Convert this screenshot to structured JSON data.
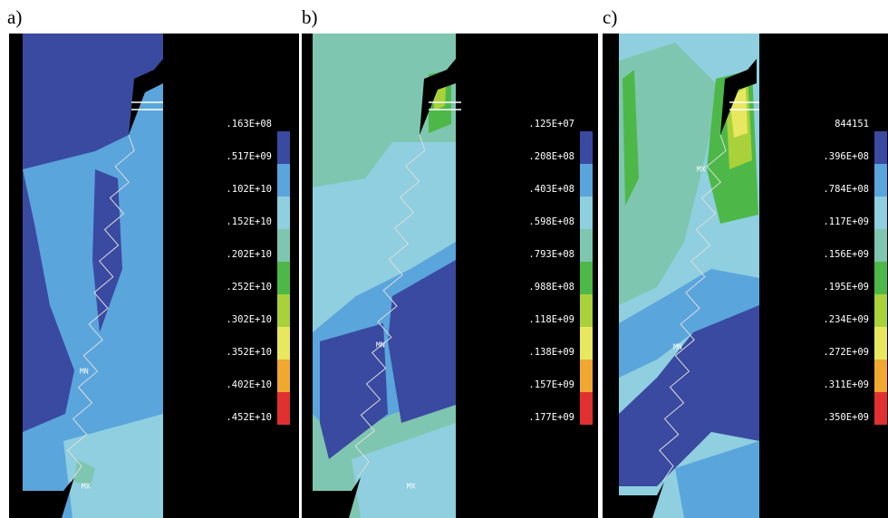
{
  "panels": [
    {
      "label": "a)",
      "legend": [
        ".163E+08",
        ".517E+09",
        ".102E+10",
        ".152E+10",
        ".202E+10",
        ".252E+10",
        ".302E+10",
        ".352E+10",
        ".402E+10",
        ".452E+10"
      ],
      "markers": [
        "MN",
        "MX"
      ]
    },
    {
      "label": "b)",
      "legend": [
        ".125E+07",
        ".208E+08",
        ".403E+08",
        ".598E+08",
        ".793E+08",
        ".988E+08",
        ".118E+09",
        ".138E+09",
        ".157E+09",
        ".177E+09"
      ],
      "markers": [
        "MN",
        "MX"
      ]
    },
    {
      "label": "c)",
      "legend": [
        "844151",
        ".396E+08",
        ".784E+08",
        ".117E+09",
        ".156E+09",
        ".195E+09",
        ".234E+09",
        ".272E+09",
        ".311E+09",
        ".350E+09"
      ],
      "markers": [
        "MX",
        "MN"
      ]
    }
  ]
}
